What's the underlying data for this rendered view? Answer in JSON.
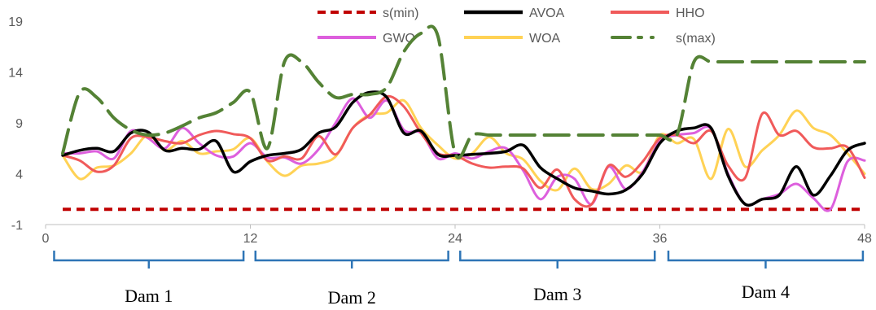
{
  "chart_data": {
    "type": "line",
    "title": "",
    "xlabel": "",
    "ylabel": "",
    "xlim": [
      0,
      48
    ],
    "ylim": [
      -1,
      19
    ],
    "x_ticks": [
      "0",
      "12",
      "24",
      "36",
      "48"
    ],
    "y_ticks": [
      "-1",
      "4",
      "9",
      "14",
      "19"
    ],
    "legend_position": "top-right",
    "grid": false,
    "groups": [
      {
        "label": "Dam 1",
        "from": 0.5,
        "to": 11.6
      },
      {
        "label": "Dam 2",
        "from": 12.3,
        "to": 23.6
      },
      {
        "label": "Dam 3",
        "from": 24.3,
        "to": 35.7
      },
      {
        "label": "Dam 4",
        "from": 36.5,
        "to": 47.9
      }
    ],
    "series": [
      {
        "name": "s(min)",
        "color": "#C00000",
        "style": "dash",
        "x": [
          1,
          48
        ],
        "y": [
          0.5,
          0.5
        ]
      },
      {
        "name": "AVOA",
        "color": "#000000",
        "style": "solid",
        "x": [
          1,
          2,
          3,
          4,
          5,
          6,
          7,
          8,
          9,
          10,
          11,
          12,
          13,
          14,
          15,
          16,
          17,
          18,
          19,
          20,
          21,
          22,
          23,
          24,
          25,
          26,
          27,
          28,
          29,
          30,
          31,
          32,
          33,
          34,
          35,
          36,
          37,
          38,
          39,
          40,
          41,
          42,
          43,
          44,
          45,
          46,
          47,
          48
        ],
        "y": [
          5.8,
          6.3,
          6.5,
          6.2,
          8.0,
          8.1,
          6.3,
          6.5,
          6.4,
          7.2,
          4.2,
          5.2,
          5.8,
          6.0,
          6.4,
          8.0,
          8.6,
          11.0,
          12.0,
          11.5,
          8.0,
          8.2,
          5.9,
          5.8,
          5.9,
          6.0,
          6.2,
          6.8,
          4.6,
          3.5,
          2.6,
          2.3,
          2.0,
          2.4,
          4.0,
          7.0,
          8.2,
          8.5,
          8.5,
          3.8,
          1.0,
          1.5,
          1.9,
          4.7,
          1.9,
          3.8,
          6.3,
          7.0
        ]
      },
      {
        "name": "HHO",
        "color": "#F05A5A",
        "style": "solid",
        "x": [
          1,
          2,
          3,
          4,
          5,
          6,
          7,
          8,
          9,
          10,
          11,
          12,
          13,
          14,
          15,
          16,
          17,
          18,
          19,
          20,
          21,
          22,
          23,
          24,
          25,
          26,
          27,
          28,
          29,
          30,
          31,
          32,
          33,
          34,
          35,
          36,
          37,
          38,
          39,
          40,
          41,
          42,
          43,
          44,
          45,
          46,
          47,
          48
        ],
        "y": [
          5.8,
          5.3,
          4.2,
          4.8,
          7.5,
          7.6,
          7.2,
          7.0,
          7.8,
          8.2,
          7.9,
          7.5,
          5.3,
          5.7,
          5.5,
          7.7,
          5.9,
          8.5,
          9.8,
          11.6,
          10.6,
          8.0,
          6.0,
          5.8,
          5.0,
          4.6,
          4.7,
          4.5,
          2.6,
          4.4,
          1.5,
          1.0,
          4.8,
          3.7,
          5.2,
          7.5,
          7.8,
          7.0,
          8.2,
          4.8,
          3.6,
          9.9,
          7.8,
          8.2,
          6.6,
          6.5,
          6.6,
          3.6
        ]
      },
      {
        "name": "GWO",
        "color": "#DD5FDD",
        "style": "solid",
        "x": [
          1,
          2,
          3,
          4,
          5,
          6,
          7,
          8,
          9,
          10,
          11,
          12,
          13,
          14,
          15,
          16,
          17,
          18,
          19,
          20,
          21,
          22,
          23,
          24,
          25,
          26,
          27,
          28,
          29,
          30,
          31,
          32,
          33,
          34,
          35,
          36,
          37,
          38,
          39,
          40,
          41,
          42,
          43,
          44,
          45,
          46,
          47,
          48
        ],
        "y": [
          6.0,
          6.0,
          6.2,
          5.5,
          8.2,
          7.5,
          6.5,
          8.5,
          7.0,
          5.8,
          5.7,
          7.0,
          5.6,
          5.6,
          5.0,
          6.4,
          9.0,
          11.4,
          9.5,
          11.2,
          8.3,
          8.0,
          5.5,
          6.0,
          5.5,
          6.2,
          6.5,
          4.3,
          1.5,
          3.7,
          3.5,
          1.0,
          4.7,
          2.5,
          4.2,
          7.2,
          7.8,
          8.0,
          8.4,
          4.0,
          1.0,
          1.5,
          2.0,
          3.0,
          1.6,
          0.5,
          5.2,
          5.3
        ]
      },
      {
        "name": "WOA",
        "color": "#FFD255",
        "style": "solid",
        "x": [
          1,
          2,
          3,
          4,
          5,
          6,
          7,
          8,
          9,
          10,
          11,
          12,
          13,
          14,
          15,
          16,
          17,
          18,
          19,
          20,
          21,
          22,
          23,
          24,
          25,
          26,
          27,
          28,
          29,
          30,
          31,
          32,
          33,
          34,
          35,
          36,
          37,
          38,
          39,
          40,
          41,
          42,
          43,
          44,
          45,
          46,
          47,
          48
        ],
        "y": [
          5.8,
          3.5,
          4.6,
          4.8,
          6.0,
          7.8,
          6.3,
          7.2,
          6.0,
          6.2,
          6.4,
          7.5,
          5.2,
          3.8,
          4.8,
          5.0,
          5.7,
          8.5,
          9.8,
          10.0,
          11.2,
          8.5,
          6.8,
          5.5,
          6.0,
          7.6,
          6.0,
          5.4,
          3.3,
          2.4,
          4.5,
          2.5,
          3.0,
          4.8,
          4.2,
          7.8,
          7.0,
          7.4,
          3.5,
          8.4,
          4.7,
          6.3,
          7.8,
          10.2,
          8.5,
          7.8,
          6.0,
          4.0
        ]
      },
      {
        "name": "s(max)",
        "color": "#548235",
        "style": "longdash",
        "x": [
          1,
          2,
          3,
          4,
          5,
          6,
          7,
          8,
          9,
          10,
          11,
          12,
          13,
          14,
          15,
          16,
          17,
          18,
          19,
          20,
          21,
          22,
          23,
          24,
          25,
          26,
          27,
          28,
          29,
          30,
          31,
          32,
          33,
          34,
          35,
          36,
          37,
          38,
          39,
          40,
          41,
          42,
          43,
          44,
          45,
          46,
          47,
          48
        ],
        "y": [
          6.0,
          12.0,
          11.5,
          9.5,
          8.3,
          7.8,
          8.0,
          8.7,
          9.5,
          10.0,
          11.0,
          12.0,
          6.5,
          15.0,
          15.0,
          13.0,
          11.5,
          11.8,
          11.8,
          12.5,
          16.0,
          17.8,
          17.5,
          6.0,
          7.8,
          7.8,
          7.8,
          7.8,
          7.8,
          7.8,
          7.8,
          7.8,
          7.8,
          7.8,
          7.8,
          7.8,
          7.8,
          15.0,
          15.0,
          15.0,
          15.0,
          15.0,
          15.0,
          15.0,
          15.0,
          15.0,
          15.0,
          15.0
        ]
      }
    ]
  }
}
